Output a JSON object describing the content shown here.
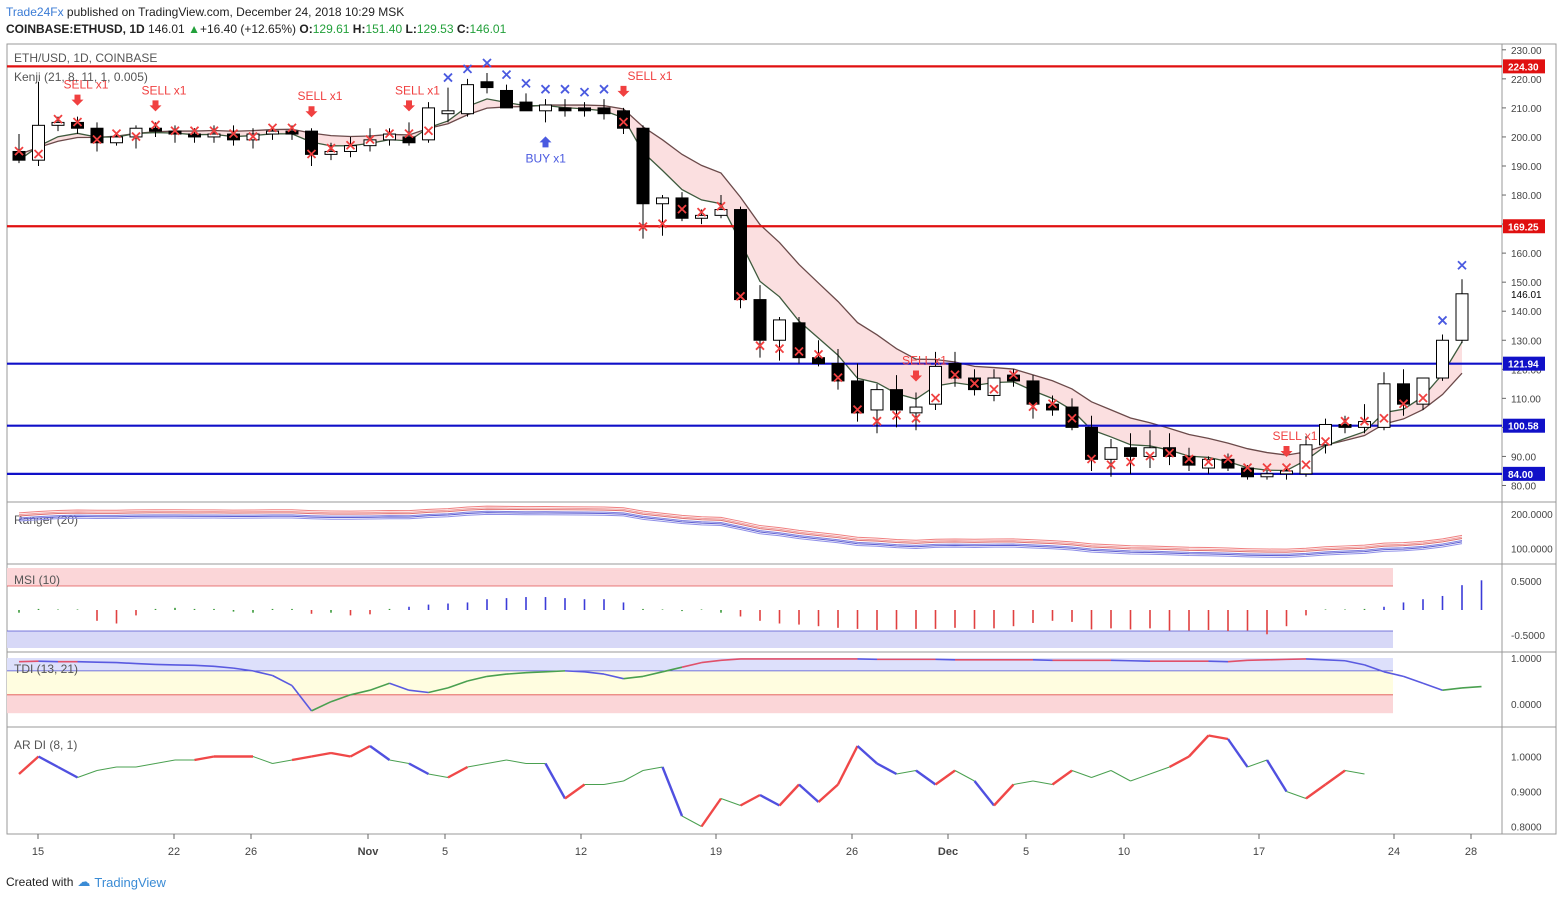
{
  "header": {
    "publisher": "Trade24Fx",
    "published_text": " published on TradingView.com, December 24, 2018 10:29 MSK",
    "symbol": "COINBASE:ETHUSD, 1D",
    "last": "146.01",
    "change": "+16.40 (+12.65%)",
    "open_label": "O:",
    "open": "129.61",
    "high_label": "H:",
    "high": "151.40",
    "low_label": "L:",
    "low": "129.53",
    "close_label": "C:",
    "close": "146.01"
  },
  "footer": {
    "created_with": "Created with",
    "brand": "TradingView"
  },
  "colors": {
    "up_candle": "#ffffff",
    "down_candle": "#000000",
    "red_line": "#e01010",
    "blue_line": "#1010c8",
    "sell": "#f04040",
    "buy": "#4a5ae0"
  },
  "chart_data": {
    "type": "candlestick",
    "main_pane": {
      "title": "ETH/USD, 1D, COINBASE",
      "indicator": "Kenji (21, 8, 11, 1, 0.005)",
      "ylim": [
        75,
        232
      ],
      "y_ticks": [
        80,
        90,
        100,
        110,
        120,
        130,
        140,
        150,
        160,
        170,
        180,
        190,
        200,
        210,
        220,
        230
      ],
      "last_price_label": "146.01",
      "horizontal_lines": [
        {
          "value": 224.3,
          "label": "224.30",
          "color": "red"
        },
        {
          "value": 169.25,
          "label": "169.25",
          "color": "red"
        },
        {
          "value": 121.94,
          "label": "121.94",
          "color": "blue"
        },
        {
          "value": 100.58,
          "label": "100.58",
          "color": "blue"
        },
        {
          "value": 84.0,
          "label": "84.00",
          "color": "blue"
        }
      ],
      "candles": [
        [
          195,
          201,
          191,
          192
        ],
        [
          192,
          219,
          190,
          204
        ],
        [
          204,
          207,
          202,
          205
        ],
        [
          205,
          207,
          201,
          203
        ],
        [
          203,
          205,
          195,
          198
        ],
        [
          198,
          201,
          197,
          200
        ],
        [
          200,
          204,
          196,
          203
        ],
        [
          203,
          205,
          200,
          202
        ],
        [
          202,
          204,
          198,
          201
        ],
        [
          201,
          203,
          198,
          200
        ],
        [
          200,
          204,
          198,
          201
        ],
        [
          201,
          204,
          197,
          199
        ],
        [
          199,
          203,
          196,
          201
        ],
        [
          201,
          203,
          199,
          202
        ],
        [
          202,
          204,
          199,
          201
        ],
        [
          202,
          203,
          190,
          194
        ],
        [
          194,
          198,
          192,
          195
        ],
        [
          195,
          200,
          193,
          197
        ],
        [
          197,
          203,
          195,
          199
        ],
        [
          199,
          203,
          197,
          201
        ],
        [
          200,
          205,
          197,
          198
        ],
        [
          199,
          212,
          198,
          210
        ],
        [
          208,
          217,
          205,
          209
        ],
        [
          208,
          220,
          207,
          218
        ],
        [
          219,
          222,
          215,
          217
        ],
        [
          216,
          218,
          211,
          210
        ],
        [
          212,
          215,
          209,
          209
        ],
        [
          209,
          213,
          205,
          211
        ],
        [
          210,
          213,
          207,
          209
        ],
        [
          210,
          212,
          207,
          209
        ],
        [
          210,
          213,
          206,
          208
        ],
        [
          209,
          210,
          201,
          203
        ],
        [
          203,
          204,
          165,
          177
        ],
        [
          177,
          180,
          166,
          179
        ],
        [
          179,
          181,
          171,
          172
        ],
        [
          172,
          175,
          170,
          173
        ],
        [
          173,
          180,
          172,
          175
        ],
        [
          175,
          176,
          141,
          144
        ],
        [
          144,
          149,
          124,
          130
        ],
        [
          130,
          138,
          123,
          137
        ],
        [
          136,
          138,
          122,
          124
        ],
        [
          124,
          130,
          121,
          122
        ],
        [
          122,
          127,
          113,
          116
        ],
        [
          116,
          122,
          102,
          105
        ],
        [
          106,
          115,
          98,
          113
        ],
        [
          113,
          118,
          100,
          106
        ],
        [
          105,
          112,
          99,
          107
        ],
        [
          108,
          126,
          106,
          121
        ],
        [
          122,
          126,
          114,
          117
        ],
        [
          117,
          120,
          111,
          113
        ],
        [
          111,
          120,
          109,
          117
        ],
        [
          118,
          120,
          114,
          116
        ],
        [
          116,
          118,
          103,
          108
        ],
        [
          108,
          111,
          104,
          106
        ],
        [
          107,
          110,
          99,
          100
        ],
        [
          100,
          104,
          85,
          89
        ],
        [
          89,
          96,
          83,
          93
        ],
        [
          93,
          98,
          84,
          90
        ],
        [
          90,
          99,
          86,
          93
        ],
        [
          93,
          98,
          87,
          90
        ],
        [
          90,
          93,
          85,
          87
        ],
        [
          86,
          90,
          84,
          89
        ],
        [
          89,
          91,
          85,
          86
        ],
        [
          86,
          87,
          82,
          83
        ],
        [
          83,
          85,
          82,
          84
        ],
        [
          84,
          86,
          82,
          85
        ],
        [
          84,
          97,
          83,
          94
        ],
        [
          94,
          103,
          91,
          101
        ],
        [
          101,
          104,
          98,
          100
        ],
        [
          100,
          108,
          98,
          102
        ],
        [
          100,
          119,
          99,
          115
        ],
        [
          115,
          120,
          104,
          108
        ],
        [
          108,
          117,
          106,
          117
        ],
        [
          117,
          132,
          116,
          130
        ],
        [
          130,
          151,
          129,
          146
        ]
      ],
      "sell_labels": [
        "SELL x1",
        "SELL x1",
        "SELL x1",
        "SELL x1",
        "SELL x1",
        "SELL x1",
        "SELL x1"
      ],
      "buy_labels": [
        "BUY x1"
      ]
    },
    "x_ticks": [
      "15",
      "22",
      "26",
      "Nov",
      "5",
      "12",
      "19",
      "26",
      "Dec",
      "5",
      "10",
      "17",
      "24",
      "28"
    ],
    "ranger_pane": {
      "title": "Ranger (20)",
      "y_ticks": [
        "200.0000",
        "100.0000"
      ]
    },
    "msi_pane": {
      "title": "MSI (10)",
      "y_ticks": [
        "0.5000",
        "-0.5000"
      ],
      "values": [
        -0.05,
        0.02,
        0.01,
        0.01,
        -0.2,
        -0.25,
        -0.1,
        0.02,
        0.04,
        0.02,
        0.02,
        -0.03,
        -0.05,
        0.02,
        0.02,
        -0.07,
        -0.05,
        -0.1,
        -0.08,
        0.02,
        0.06,
        0.1,
        0.12,
        0.14,
        0.2,
        0.22,
        0.24,
        0.24,
        0.22,
        0.2,
        0.2,
        0.14,
        0.02,
        0.01,
        -0.02,
        0.01,
        -0.05,
        -0.12,
        -0.2,
        -0.25,
        -0.27,
        -0.3,
        -0.33,
        -0.35,
        -0.37,
        -0.36,
        -0.35,
        -0.35,
        -0.33,
        -0.35,
        -0.34,
        -0.3,
        -0.24,
        -0.2,
        -0.22,
        -0.36,
        -0.34,
        -0.36,
        -0.34,
        -0.38,
        -0.38,
        -0.37,
        -0.39,
        -0.38,
        -0.45,
        -0.3,
        -0.1,
        0.01,
        0.01,
        0.02,
        0.06,
        0.14,
        0.2,
        0.26,
        0.46,
        0.55
      ]
    },
    "tdi_pane": {
      "title": "TDI (13, 21)",
      "y_ticks": [
        "1.0000",
        "0.0000"
      ],
      "values": [
        0.92,
        0.93,
        0.92,
        0.92,
        0.91,
        0.9,
        0.88,
        0.86,
        0.85,
        0.84,
        0.82,
        0.78,
        0.72,
        0.62,
        0.4,
        -0.15,
        0.05,
        0.2,
        0.3,
        0.45,
        0.3,
        0.25,
        0.35,
        0.5,
        0.6,
        0.65,
        0.68,
        0.7,
        0.72,
        0.7,
        0.65,
        0.55,
        0.6,
        0.7,
        0.8,
        0.9,
        0.95,
        0.98,
        0.98,
        0.98,
        0.98,
        0.98,
        0.98,
        0.98,
        0.97,
        0.97,
        0.97,
        0.97,
        0.96,
        0.96,
        0.96,
        0.96,
        0.96,
        0.95,
        0.95,
        0.95,
        0.95,
        0.94,
        0.93,
        0.93,
        0.93,
        0.93,
        0.92,
        0.95,
        0.96,
        0.97,
        0.98,
        0.96,
        0.94,
        0.85,
        0.7,
        0.6,
        0.45,
        0.3,
        0.35,
        0.38
      ]
    },
    "ardi_pane": {
      "title": "AR DI (8, 1)",
      "y_ticks": [
        "1.0000",
        "0.9000",
        "0.8000"
      ],
      "values": [
        0.95,
        1.0,
        0.97,
        0.94,
        0.96,
        0.97,
        0.97,
        0.98,
        0.99,
        0.99,
        1.0,
        1.0,
        1.0,
        0.98,
        0.99,
        1.0,
        1.01,
        1.0,
        1.03,
        0.99,
        0.98,
        0.95,
        0.94,
        0.97,
        0.98,
        0.99,
        0.98,
        0.98,
        0.88,
        0.92,
        0.92,
        0.93,
        0.96,
        0.97,
        0.83,
        0.8,
        0.88,
        0.86,
        0.89,
        0.86,
        0.92,
        0.87,
        0.92,
        1.03,
        0.98,
        0.95,
        0.96,
        0.92,
        0.96,
        0.93,
        0.86,
        0.92,
        0.93,
        0.92,
        0.96,
        0.94,
        0.96,
        0.93,
        0.95,
        0.97,
        1.0,
        1.06,
        1.05,
        0.97,
        0.99,
        0.9,
        0.88,
        0.92,
        0.96,
        0.95
      ]
    }
  }
}
